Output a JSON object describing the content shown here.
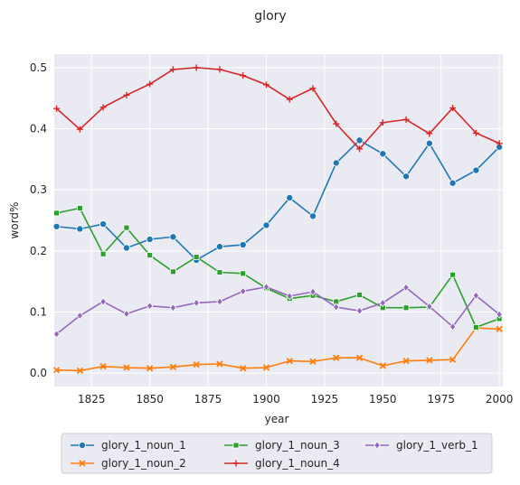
{
  "chart_data": {
    "type": "line",
    "title": "glory",
    "xlabel": "year",
    "ylabel": "word%",
    "xlim": [
      1809,
      2001.5
    ],
    "ylim": [
      -0.022,
      0.522
    ],
    "xticks": [
      1825,
      1850,
      1875,
      1900,
      1925,
      1950,
      1975,
      2000
    ],
    "yticks": [
      0.0,
      0.1,
      0.2,
      0.3,
      0.4,
      0.5
    ],
    "ytick_labels": [
      "0.0",
      "0.1",
      "0.2",
      "0.3",
      "0.4",
      "0.5"
    ],
    "grid": true,
    "legend_position": "bottom",
    "x": [
      1810,
      1820,
      1830,
      1840,
      1850,
      1860,
      1870,
      1880,
      1890,
      1900,
      1910,
      1920,
      1930,
      1940,
      1950,
      1960,
      1970,
      1980,
      1990,
      2000
    ],
    "series": [
      {
        "name": "glory_1_noun_1",
        "color": "#1f77b4",
        "marker": "circle",
        "values": [
          0.24,
          0.236,
          0.244,
          0.205,
          0.219,
          0.223,
          0.185,
          0.207,
          0.21,
          0.242,
          0.287,
          0.257,
          0.344,
          0.381,
          0.359,
          0.322,
          0.376,
          0.311,
          0.332,
          0.37
        ]
      },
      {
        "name": "glory_1_noun_2",
        "color": "#ff7f0e",
        "marker": "x",
        "values": [
          0.005,
          0.004,
          0.011,
          0.009,
          0.008,
          0.01,
          0.014,
          0.015,
          0.008,
          0.009,
          0.02,
          0.019,
          0.025,
          0.025,
          0.012,
          0.02,
          0.021,
          0.022,
          0.074,
          0.072
        ]
      },
      {
        "name": "glory_1_noun_3",
        "color": "#2ca02c",
        "marker": "square",
        "values": [
          0.262,
          0.27,
          0.195,
          0.238,
          0.193,
          0.166,
          0.19,
          0.165,
          0.163,
          0.139,
          0.122,
          0.127,
          0.117,
          0.128,
          0.107,
          0.107,
          0.108,
          0.161,
          0.075,
          0.089
        ]
      },
      {
        "name": "glory_1_noun_4",
        "color": "#d62728",
        "marker": "plus",
        "values": [
          0.433,
          0.399,
          0.435,
          0.455,
          0.473,
          0.497,
          0.5,
          0.497,
          0.487,
          0.472,
          0.448,
          0.466,
          0.408,
          0.367,
          0.41,
          0.415,
          0.392,
          0.434,
          0.393,
          0.376
        ]
      },
      {
        "name": "glory_1_verb_1",
        "color": "#9467bd",
        "marker": "diamond",
        "values": [
          0.064,
          0.094,
          0.117,
          0.097,
          0.11,
          0.107,
          0.115,
          0.117,
          0.134,
          0.141,
          0.126,
          0.133,
          0.108,
          0.102,
          0.115,
          0.14,
          0.109,
          0.076,
          0.127,
          0.096
        ]
      }
    ]
  }
}
